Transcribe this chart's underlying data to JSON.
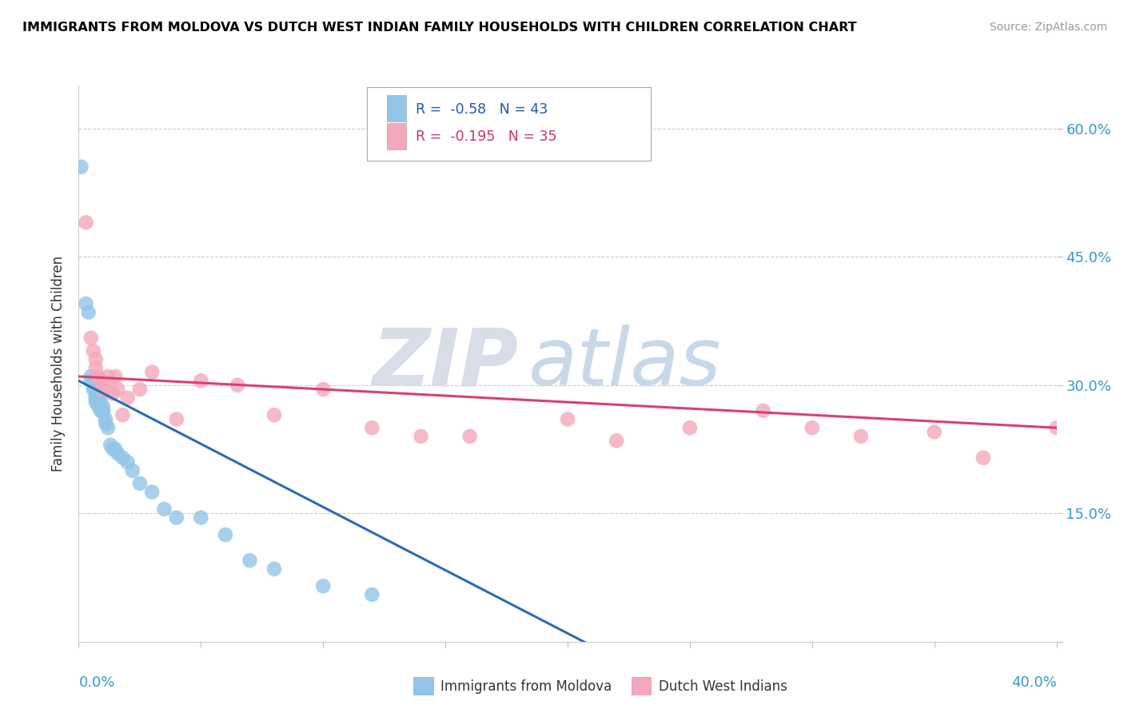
{
  "title": "IMMIGRANTS FROM MOLDOVA VS DUTCH WEST INDIAN FAMILY HOUSEHOLDS WITH CHILDREN CORRELATION CHART",
  "source": "Source: ZipAtlas.com",
  "ylabel": "Family Households with Children",
  "yticks": [
    0.0,
    0.15,
    0.3,
    0.45,
    0.6
  ],
  "ytick_labels": [
    "",
    "15.0%",
    "30.0%",
    "45.0%",
    "60.0%"
  ],
  "xlim": [
    0.0,
    0.4
  ],
  "ylim": [
    0.0,
    0.65
  ],
  "blue_R": -0.58,
  "blue_N": 43,
  "pink_R": -0.195,
  "pink_N": 35,
  "blue_color": "#92C5E8",
  "pink_color": "#F4A8BB",
  "blue_line_color": "#2B6CB8",
  "pink_line_color": "#D94070",
  "watermark_zip": "ZIP",
  "watermark_atlas": "atlas",
  "legend_label_blue": "Immigrants from Moldova",
  "legend_label_pink": "Dutch West Indians",
  "blue_scatter_x": [
    0.001,
    0.003,
    0.004,
    0.005,
    0.005,
    0.006,
    0.006,
    0.006,
    0.007,
    0.007,
    0.007,
    0.007,
    0.007,
    0.008,
    0.008,
    0.008,
    0.008,
    0.009,
    0.009,
    0.009,
    0.01,
    0.01,
    0.01,
    0.011,
    0.011,
    0.012,
    0.013,
    0.014,
    0.015,
    0.016,
    0.018,
    0.02,
    0.022,
    0.025,
    0.03,
    0.035,
    0.04,
    0.05,
    0.06,
    0.07,
    0.08,
    0.1,
    0.12
  ],
  "blue_scatter_y": [
    0.555,
    0.395,
    0.385,
    0.31,
    0.305,
    0.295,
    0.305,
    0.3,
    0.285,
    0.29,
    0.295,
    0.285,
    0.28,
    0.28,
    0.275,
    0.285,
    0.28,
    0.285,
    0.27,
    0.275,
    0.27,
    0.268,
    0.275,
    0.26,
    0.255,
    0.25,
    0.23,
    0.225,
    0.225,
    0.22,
    0.215,
    0.21,
    0.2,
    0.185,
    0.175,
    0.155,
    0.145,
    0.145,
    0.125,
    0.095,
    0.085,
    0.065,
    0.055
  ],
  "pink_scatter_x": [
    0.003,
    0.005,
    0.006,
    0.007,
    0.007,
    0.008,
    0.009,
    0.01,
    0.011,
    0.012,
    0.013,
    0.014,
    0.015,
    0.016,
    0.018,
    0.02,
    0.025,
    0.03,
    0.04,
    0.05,
    0.065,
    0.08,
    0.1,
    0.12,
    0.14,
    0.16,
    0.2,
    0.22,
    0.25,
    0.28,
    0.3,
    0.32,
    0.35,
    0.37,
    0.4
  ],
  "pink_scatter_y": [
    0.49,
    0.355,
    0.34,
    0.33,
    0.32,
    0.31,
    0.305,
    0.295,
    0.295,
    0.31,
    0.3,
    0.29,
    0.31,
    0.295,
    0.265,
    0.285,
    0.295,
    0.315,
    0.26,
    0.305,
    0.3,
    0.265,
    0.295,
    0.25,
    0.24,
    0.24,
    0.26,
    0.235,
    0.25,
    0.27,
    0.25,
    0.24,
    0.245,
    0.215,
    0.25
  ],
  "blue_line_x0": 0.0,
  "blue_line_x1": 0.21,
  "blue_line_y0": 0.305,
  "blue_line_y1": -0.005,
  "pink_line_x0": 0.0,
  "pink_line_x1": 0.4,
  "pink_line_y0": 0.31,
  "pink_line_y1": 0.25
}
